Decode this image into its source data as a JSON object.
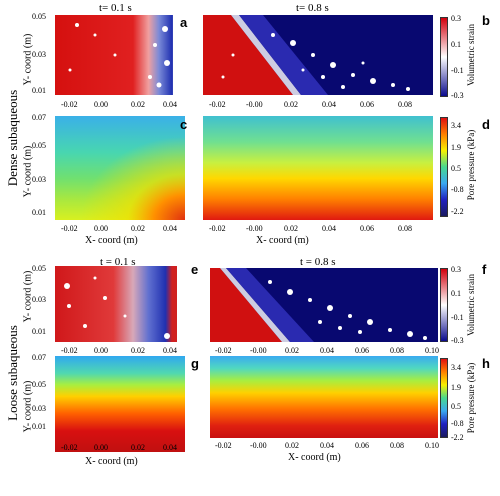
{
  "row_labels": {
    "dense": "Dense subaqueous",
    "loose": "Loose subaqueous"
  },
  "titles": {
    "t1": "t= 0.1 s",
    "t2": "t= 0.8 s",
    "t3": "t = 0.1 s",
    "t4": "t = 0.8 s"
  },
  "panel_letters": {
    "a": "a",
    "b": "b",
    "c": "c",
    "d": "d",
    "e": "e",
    "f": "f",
    "g": "g",
    "h": "h"
  },
  "axis": {
    "y": "Y- coord (m)",
    "x": "X- coord (m)"
  },
  "y_ticks_small": [
    "0.05",
    "0.03",
    "0.01"
  ],
  "y_ticks_large": [
    "0.07",
    "0.05",
    "0.03",
    "0.01"
  ],
  "x_ticks_left": [
    "-0.02",
    "0.00",
    "0.02",
    "0.04"
  ],
  "x_ticks_right_top": [
    "-0.02",
    "-0.00",
    "0.02",
    "0.04",
    "0.06",
    "0.08"
  ],
  "x_ticks_right_d": [
    "-0.02",
    "-0.00",
    "0.02",
    "0.04",
    "0.06",
    "0.08"
  ],
  "x_ticks_right_bottom": [
    "-0.02",
    "-0.00",
    "0.02",
    "0.04",
    "0.06",
    "0.08",
    "0.10"
  ],
  "colorbars": {
    "strain": {
      "label": "Volumetric strain",
      "ticks": [
        "0.3",
        "0.1",
        "-0.1",
        "-0.3"
      ],
      "colors": [
        "#d2000d",
        "#ffffff",
        "#0a0a8c"
      ]
    },
    "pressure": {
      "label": "Pore pressure (kPa)",
      "ticks": [
        "3.4",
        "1.9",
        "0.5",
        "-0.8",
        "-2.2"
      ],
      "colors": [
        "#e01010",
        "#ffb000",
        "#f7f000",
        "#48d890",
        "#3aa8f0",
        "#2020c0",
        "#1a1a60"
      ]
    }
  }
}
